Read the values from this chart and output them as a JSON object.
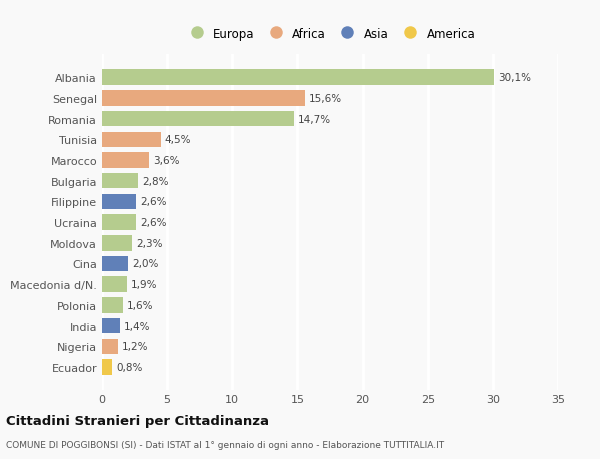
{
  "countries": [
    "Albania",
    "Senegal",
    "Romania",
    "Tunisia",
    "Marocco",
    "Bulgaria",
    "Filippine",
    "Ucraina",
    "Moldova",
    "Cina",
    "Macedonia d/N.",
    "Polonia",
    "India",
    "Nigeria",
    "Ecuador"
  ],
  "values": [
    30.1,
    15.6,
    14.7,
    4.5,
    3.6,
    2.8,
    2.6,
    2.6,
    2.3,
    2.0,
    1.9,
    1.6,
    1.4,
    1.2,
    0.8
  ],
  "labels": [
    "30,1%",
    "15,6%",
    "14,7%",
    "4,5%",
    "3,6%",
    "2,8%",
    "2,6%",
    "2,6%",
    "2,3%",
    "2,0%",
    "1,9%",
    "1,6%",
    "1,4%",
    "1,2%",
    "0,8%"
  ],
  "continents": [
    "Europa",
    "Africa",
    "Europa",
    "Africa",
    "Africa",
    "Europa",
    "Asia",
    "Europa",
    "Europa",
    "Asia",
    "Europa",
    "Europa",
    "Asia",
    "Africa",
    "America"
  ],
  "continent_colors": {
    "Europa": "#b5cc8e",
    "Africa": "#e8a97e",
    "Asia": "#6080b8",
    "America": "#f0c84a"
  },
  "legend_order": [
    "Europa",
    "Africa",
    "Asia",
    "America"
  ],
  "title": "Cittadini Stranieri per Cittadinanza",
  "subtitle": "COMUNE DI POGGIBONSI (SI) - Dati ISTAT al 1° gennaio di ogni anno - Elaborazione TUTTITALIA.IT",
  "xlim": [
    0,
    35
  ],
  "xticks": [
    0,
    5,
    10,
    15,
    20,
    25,
    30,
    35
  ],
  "bg_color": "#f9f9f9",
  "grid_color": "#ffffff",
  "bar_height": 0.75
}
